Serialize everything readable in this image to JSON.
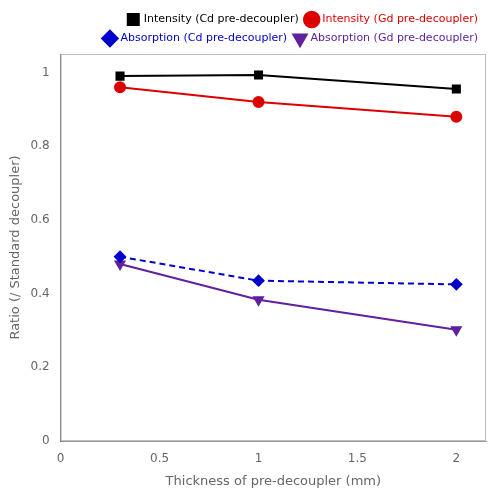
{
  "chart_data": {
    "type": "line",
    "x": [
      0.3,
      1.0,
      2.0
    ],
    "series": [
      {
        "name": "Intensity (Cd pre-decoupler)",
        "color": "#000000",
        "values": [
          0.99,
          0.993,
          0.955
        ],
        "marker": "square",
        "line_style": "solid"
      },
      {
        "name": "Intensity (Gd pre-decoupler)",
        "color": "#dd0000",
        "values": [
          0.96,
          0.92,
          0.88
        ],
        "marker": "circle",
        "line_style": "solid"
      },
      {
        "name": "Absorption (Cd pre-decoupler)",
        "color": "#0000cc",
        "values": [
          0.5,
          0.435,
          0.425
        ],
        "marker": "diamond",
        "line_style": "dashed"
      },
      {
        "name": "Absorption (Gd pre-decoupler)",
        "color": "#6020a0",
        "values": [
          0.48,
          0.383,
          0.302
        ],
        "marker": "triangle_down",
        "line_style": "solid"
      }
    ],
    "xlabel": "Thickness of pre-decoupler (mm)",
    "ylabel": "Ratio (/ Standard decoupler)",
    "xlim": [
      0,
      2.15
    ],
    "ylim": [
      0,
      1.05
    ],
    "xticks": [
      0,
      0.5,
      1.0,
      1.5,
      2.0
    ],
    "yticks": [
      0,
      0.2,
      0.4,
      0.6,
      0.8,
      1.0
    ],
    "grid": false,
    "legend": "upper right"
  }
}
